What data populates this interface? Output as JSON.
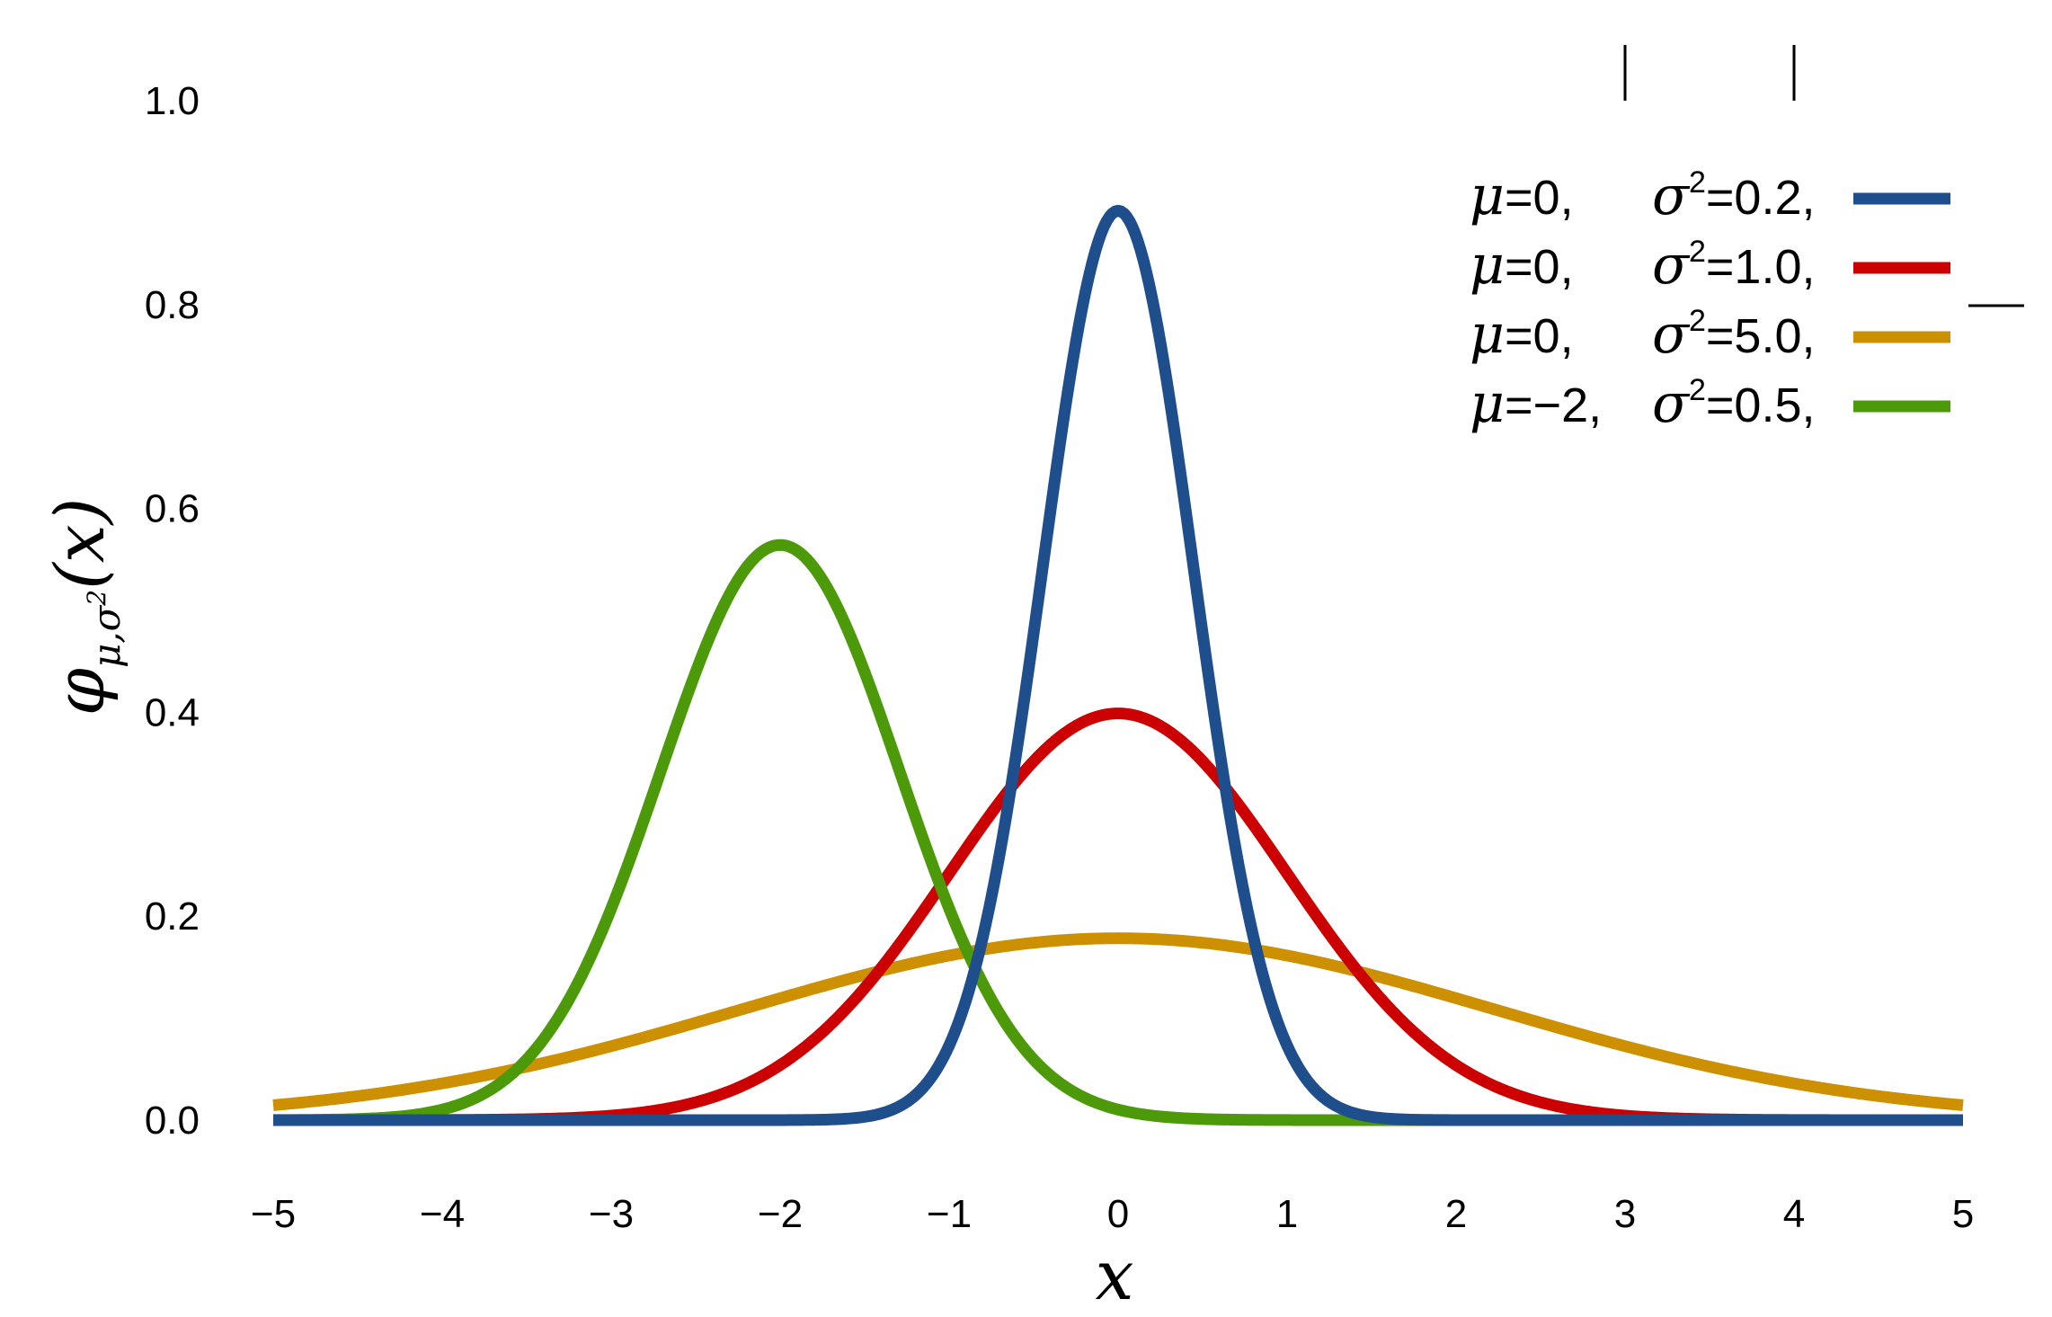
{
  "chart_data": {
    "type": "line",
    "title": "",
    "xlabel": "x",
    "ylabel": {
      "symbol": "φ",
      "subscript": "μ,σ",
      "subscript_power": "2",
      "argument": "(x)"
    },
    "xlim": [
      -5,
      5
    ],
    "ylim": [
      0,
      1.0
    ],
    "xticks": [
      -5,
      -4,
      -3,
      -2,
      -1,
      0,
      1,
      2,
      3,
      4,
      5
    ],
    "xtick_labels": [
      "−5",
      "−4",
      "−3",
      "−2",
      "−1",
      "0",
      "1",
      "2",
      "3",
      "4",
      "5"
    ],
    "yticks": [
      0,
      0.2,
      0.4,
      0.6,
      0.8,
      1.0
    ],
    "ytick_labels": [
      "0.0",
      "0.2",
      "0.4",
      "0.6",
      "0.8",
      "1.0"
    ],
    "grid": false,
    "legend_position": "top-right",
    "series": [
      {
        "mu": 0,
        "sigma2": 0.2,
        "label_mu": "0,",
        "label_sigma2": "0.2,",
        "color": "#1f4e8c"
      },
      {
        "mu": 0,
        "sigma2": 1.0,
        "label_mu": "0,",
        "label_sigma2": "1.0,",
        "color": "#cc0000"
      },
      {
        "mu": 0,
        "sigma2": 5.0,
        "label_mu": "0,",
        "label_sigma2": "5.0,",
        "color": "#cc9000"
      },
      {
        "mu": -2,
        "sigma2": 0.5,
        "label_mu": "−2,",
        "label_sigma2": "0.5,",
        "color": "#4c9a0a"
      }
    ],
    "legend_symbols": {
      "mu": "μ",
      "sigma": "σ",
      "power": "2",
      "equals": "="
    }
  }
}
